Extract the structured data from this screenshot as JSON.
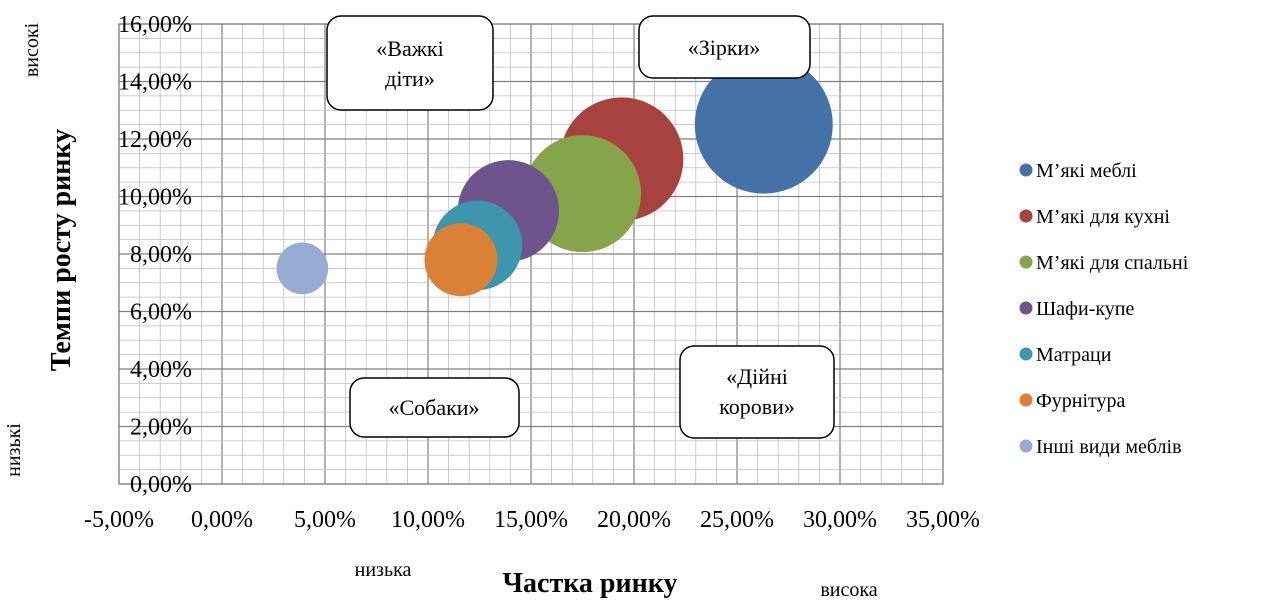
{
  "chart_data": {
    "type": "bubble",
    "xlabel": "Частка ринку",
    "ylabel": "Темпи росту ринку",
    "xlim": [
      -5,
      35
    ],
    "ylim": [
      0,
      16
    ],
    "x_ticks": [
      "-5,00%",
      "0,00%",
      "5,00%",
      "10,00%",
      "15,00%",
      "20,00%",
      "25,00%",
      "30,00%",
      "35,00%"
    ],
    "y_ticks": [
      "0,00%",
      "2,00%",
      "4,00%",
      "6,00%",
      "8,00%",
      "10,00%",
      "12,00%",
      "14,00%",
      "16,00%"
    ],
    "grid": true,
    "legend_position": "right",
    "series": [
      {
        "name": "М’які меблі",
        "x": 26.3,
        "y": 12.5,
        "size": 100,
        "color": "#4472A8"
      },
      {
        "name": "М’які для кухні",
        "x": 19.4,
        "y": 11.3,
        "size": 80,
        "color": "#A8423F"
      },
      {
        "name": "М’які для спальні",
        "x": 17.5,
        "y": 10.1,
        "size": 72,
        "color": "#86A44A"
      },
      {
        "name": "Шафи-купе",
        "x": 13.9,
        "y": 9.5,
        "size": 54,
        "color": "#6E548D"
      },
      {
        "name": "Матраци",
        "x": 12.4,
        "y": 8.3,
        "size": 42,
        "color": "#3D96AE"
      },
      {
        "name": "Фурнітура",
        "x": 11.6,
        "y": 7.8,
        "size": 28,
        "color": "#DA8137"
      },
      {
        "name": "Інші види меблів",
        "x": 3.9,
        "y": 7.5,
        "size": 14,
        "color": "#97ABD3"
      }
    ]
  },
  "quadrants": {
    "question_marks": "«Важкі діти»",
    "stars": "«Зірки»",
    "dogs": "«Собаки»",
    "cash_cows": "«Дійні корови»"
  },
  "side_labels": {
    "y_high": "високі",
    "y_low": "низькі",
    "x_low": "низька",
    "x_high": "висока"
  }
}
